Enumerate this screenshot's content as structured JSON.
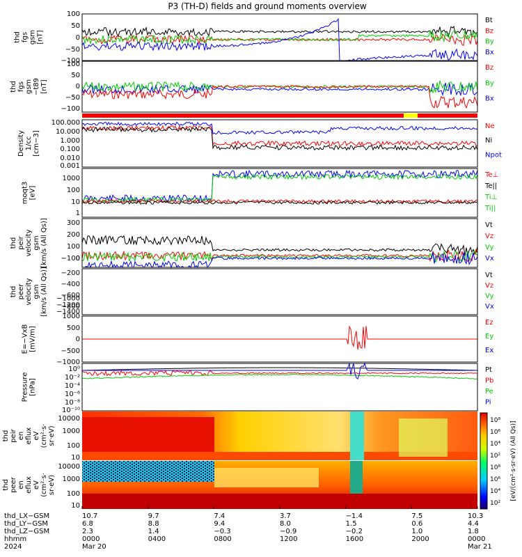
{
  "title": "P3 (TH-D) fields and ground moments overview",
  "chart_data": {
    "type": "line",
    "title": "P3 (TH-D) fields and ground moments overview",
    "panels": [
      {
        "id": "fgs",
        "ylabel": [
          "thd",
          "fgs",
          "gsm",
          "[nT]"
        ],
        "yticks": [
          "100",
          "50",
          "0",
          "−50",
          "−100"
        ],
        "ylim": [
          -100,
          100
        ],
        "legend": [
          {
            "name": "Bt",
            "color": "#000000"
          },
          {
            "name": "Bz",
            "color": "#ff0000"
          },
          {
            "name": "By",
            "color": "#00cc00"
          },
          {
            "name": "Bx",
            "color": "#0000ff"
          }
        ]
      },
      {
        "id": "fgs_dsl",
        "ylabel": [
          "thd",
          "fgs",
          "gsm",
          "−t89",
          "[nT]"
        ],
        "yticks": [
          "100",
          "50",
          "0",
          "−50",
          "−100"
        ],
        "ylim": [
          -120,
          120
        ],
        "legend": [
          {
            "name": "Bz",
            "color": "#ff0000"
          },
          {
            "name": "By",
            "color": "#00cc00"
          },
          {
            "name": "Bx",
            "color": "#0000ff"
          }
        ]
      },
      {
        "id": "density",
        "ylabel": [
          "Density",
          "1/cc",
          "[cm−3]"
        ],
        "yticks": [
          "100.000",
          "10.000",
          "1.000",
          "0.100",
          "0.010",
          "0.001"
        ],
        "scale": "log",
        "legend": [
          {
            "name": "Ne",
            "color": "#ff0000"
          },
          {
            "name": "Ni",
            "color": "#000000"
          },
          {
            "name": "Npot",
            "color": "#0000ff"
          }
        ]
      },
      {
        "id": "temp",
        "ylabel": [
          "moqt3",
          "[eV]"
        ],
        "yticks": [
          "1000",
          "100",
          "10",
          "1"
        ],
        "scale": "log",
        "legend": [
          {
            "name": "Te⊥",
            "color": "#ff0000"
          },
          {
            "name": "Te||",
            "color": "#000000"
          },
          {
            "name": "Ti⊥",
            "color": "#00cc00"
          },
          {
            "name": "Ti||",
            "color": "#00cc00"
          }
        ]
      },
      {
        "id": "vel_i",
        "ylabel": [
          "thd",
          "peir",
          "velocity",
          "gsm",
          "[km/s (All Qs)]"
        ],
        "yticks": [
          "300",
          "200",
          "100",
          "0",
          "−100"
        ],
        "ylim": [
          -150,
          300
        ],
        "legend": [
          {
            "name": "Vt",
            "color": "#000000"
          },
          {
            "name": "Vz",
            "color": "#ff0000"
          },
          {
            "name": "Vy",
            "color": "#00cc00"
          },
          {
            "name": "Vx",
            "color": "#0000ff"
          }
        ]
      },
      {
        "id": "vel_e",
        "ylabel": [
          "thd",
          "peer",
          "velocity",
          "gsm",
          "[km/s (All Qs)]"
        ],
        "yticks": [
          "−200",
          "−400",
          "−600",
          "−800",
          "−1000",
          "−1200",
          "−1400"
        ],
        "ylim": [
          -1500,
          0
        ],
        "legend": [
          {
            "name": "Vt",
            "color": "#000000"
          },
          {
            "name": "Vz",
            "color": "#ff0000"
          },
          {
            "name": "Vy",
            "color": "#00cc00"
          },
          {
            "name": "Vx",
            "color": "#0000ff"
          }
        ]
      },
      {
        "id": "efield",
        "ylabel": [
          "E=−VxB",
          "[mV/m]"
        ],
        "yticks": [
          "1000",
          "500",
          "0",
          "−500",
          "−1000"
        ],
        "ylim": [
          -1000,
          1000
        ],
        "legend": [
          {
            "name": "Ez",
            "color": "#ff0000"
          },
          {
            "name": "Ey",
            "color": "#00cc00"
          },
          {
            "name": "Ex",
            "color": "#0000ff"
          }
        ]
      },
      {
        "id": "pressure",
        "ylabel": [
          "Pressure",
          "[nPa]"
        ],
        "yticks": [
          "10⁰",
          "10⁻²",
          "10⁻⁴",
          "10⁻⁶",
          "10⁻⁸",
          "10⁻¹⁰"
        ],
        "scale": "log",
        "legend": [
          {
            "name": "Pt",
            "color": "#000000"
          },
          {
            "name": "Pb",
            "color": "#ff0000"
          },
          {
            "name": "Pe",
            "color": "#00cc00"
          },
          {
            "name": "Pi",
            "color": "#0000ff"
          }
        ]
      },
      {
        "id": "ion_spec",
        "ylabel": [
          "thd",
          "peir",
          "en",
          "eflux",
          "eV",
          "(cm²·s·",
          "sr·eV)"
        ],
        "yticks": [
          "10000",
          "1000",
          "100",
          "10"
        ],
        "type": "heatmap"
      },
      {
        "id": "elec_spec",
        "ylabel": [
          "thd",
          "peer",
          "en",
          "eflux",
          "eV",
          "(cm²·s·",
          "sr·eV)"
        ],
        "yticks": [
          "10000",
          "1000",
          "100",
          "10"
        ],
        "type": "heatmap"
      }
    ],
    "colorbar": {
      "label": "[eV/(cm²·s·sr·eV) (All Qs)]",
      "ticks": [
        "10⁸",
        "10⁶",
        "10⁴",
        "10²",
        "10⁸",
        "10⁶",
        "10⁴",
        "10²"
      ]
    },
    "x_axis": {
      "row_labels": [
        "thd_LX−GSM",
        "thd_LY−GSM",
        "thd_LZ−GSM",
        "hhmm",
        "2024"
      ],
      "columns": [
        {
          "lx": "10.7",
          "ly": "6.8",
          "lz": "2.3",
          "hhmm": "0000",
          "date": "Mar 20"
        },
        {
          "lx": "9.7",
          "ly": "8.8",
          "lz": "1.4",
          "hhmm": "0400",
          "date": ""
        },
        {
          "lx": "7.4",
          "ly": "9.4",
          "lz": "−0.3",
          "hhmm": "0800",
          "date": ""
        },
        {
          "lx": "3.7",
          "ly": "8.0",
          "lz": "−0.9",
          "hhmm": "1200",
          "date": ""
        },
        {
          "lx": "−1.4",
          "ly": "1.5",
          "lz": "−0.2",
          "hhmm": "1600",
          "date": ""
        },
        {
          "lx": "7.5",
          "ly": "0.6",
          "lz": "1.0",
          "hhmm": "2000",
          "date": ""
        },
        {
          "lx": "10.3",
          "ly": "4.4",
          "lz": "1.8",
          "hhmm": "0000",
          "date": "Mar 21"
        }
      ]
    }
  }
}
